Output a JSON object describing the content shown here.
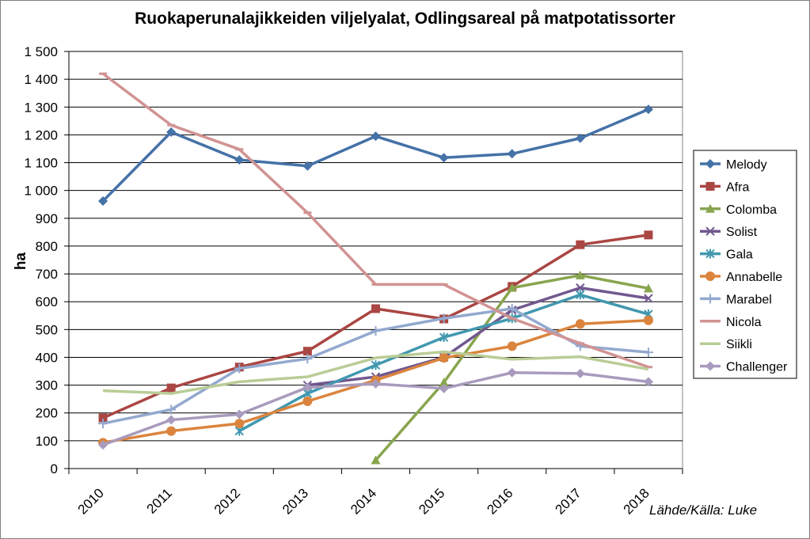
{
  "chart_data": {
    "type": "line",
    "title": "Ruokaperunalajikkeiden viljelyalat, Odlingsareal på matpotatissorter",
    "ylabel": "ha",
    "xlabel": "",
    "ylim": [
      0,
      1500
    ],
    "y_ticks": [
      0,
      100,
      200,
      300,
      400,
      500,
      600,
      700,
      800,
      900,
      1000,
      1100,
      1200,
      1300,
      1400,
      1500
    ],
    "y_tick_labels": [
      "0",
      "100",
      "200",
      "300",
      "400",
      "500",
      "600",
      "700",
      "800",
      "900",
      "1 000",
      "1 100",
      "1 200",
      "1 300",
      "1 400",
      "1 500"
    ],
    "categories": [
      "2010",
      "2011",
      "2012",
      "2013",
      "2014",
      "2015",
      "2016",
      "2017",
      "2018"
    ],
    "grid": true,
    "legend_position": "right",
    "source": "Lähde/Källa:  Luke",
    "series": [
      {
        "name": "Melody",
        "color": "#4572A7",
        "marker": "diamond",
        "values": [
          962,
          1210,
          1110,
          1088,
          1195,
          1118,
          1132,
          1188,
          1292
        ]
      },
      {
        "name": "Afra",
        "color": "#AA4643",
        "marker": "square",
        "values": [
          182,
          290,
          365,
          422,
          575,
          538,
          655,
          805,
          840
        ]
      },
      {
        "name": "Colomba",
        "color": "#89A54E",
        "marker": "triangle",
        "values": [
          null,
          null,
          null,
          null,
          30,
          310,
          650,
          695,
          648
        ]
      },
      {
        "name": "Solist",
        "color": "#71588F",
        "marker": "x",
        "values": [
          null,
          null,
          null,
          300,
          330,
          400,
          570,
          650,
          612
        ]
      },
      {
        "name": "Gala",
        "color": "#4198AF",
        "marker": "star",
        "values": [
          null,
          null,
          135,
          270,
          372,
          472,
          540,
          625,
          555
        ]
      },
      {
        "name": "Annabelle",
        "color": "#DB843D",
        "marker": "circle",
        "values": [
          93,
          135,
          162,
          242,
          318,
          398,
          440,
          520,
          533
        ]
      },
      {
        "name": "Marabel",
        "color": "#93A9CF",
        "marker": "plus",
        "values": [
          162,
          212,
          360,
          395,
          495,
          540,
          575,
          440,
          418
        ]
      },
      {
        "name": "Nicola",
        "color": "#D19392",
        "marker": "dash",
        "values": [
          1420,
          1235,
          1148,
          920,
          662,
          662,
          540,
          450,
          365
        ]
      },
      {
        "name": "Siikli",
        "color": "#B9CD96",
        "marker": "none",
        "values": [
          280,
          270,
          312,
          330,
          398,
          420,
          393,
          402,
          357
        ]
      },
      {
        "name": "Challenger",
        "color": "#A99BBD",
        "marker": "diamond",
        "values": [
          85,
          175,
          195,
          292,
          305,
          288,
          345,
          342,
          312
        ]
      }
    ]
  }
}
